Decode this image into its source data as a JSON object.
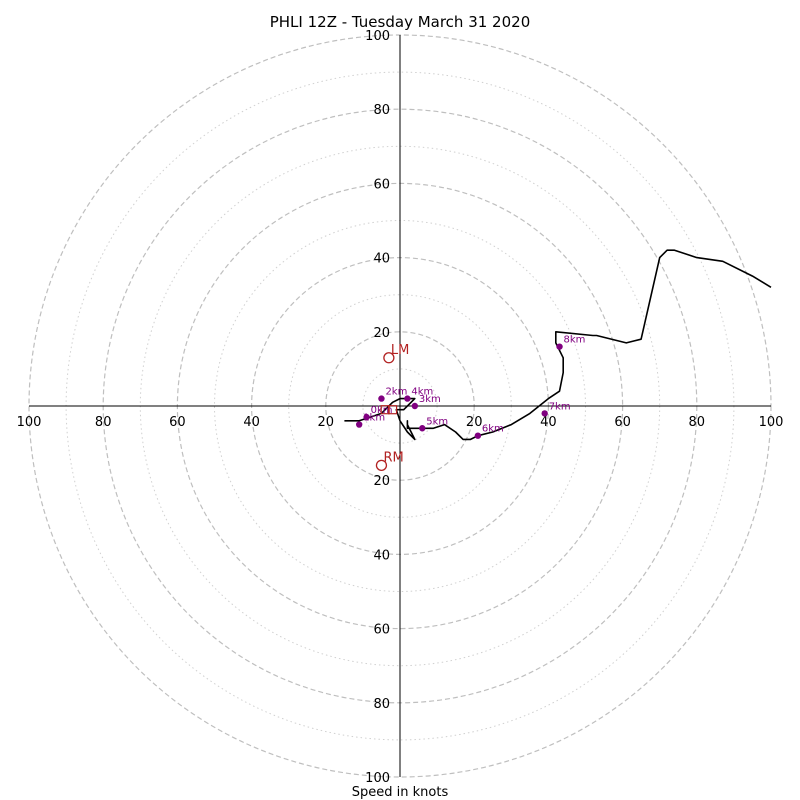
{
  "chart_data": {
    "type": "line",
    "title": "PHLI 12Z - Tuesday March 31 2020",
    "xlabel": "Speed in knots",
    "ylabel": "",
    "xlim": [
      -100,
      100
    ],
    "ylim": [
      -100,
      100
    ],
    "grid": true,
    "rings_dashed": [
      20,
      40,
      60,
      80,
      100
    ],
    "rings_dotted": [
      10,
      30,
      50,
      70,
      90
    ],
    "x_tick_labels": [
      "100",
      "80",
      "60",
      "40",
      "20",
      "20",
      "40",
      "60",
      "80",
      "100"
    ],
    "x_tick_values": [
      -100,
      -80,
      -60,
      -40,
      -20,
      20,
      40,
      60,
      80,
      100
    ],
    "y_tick_labels": [
      "100",
      "80",
      "60",
      "40",
      "20",
      "20",
      "40",
      "60",
      "80",
      "100"
    ],
    "y_tick_values": [
      100,
      80,
      60,
      40,
      20,
      -20,
      -40,
      -60,
      -80,
      -100
    ],
    "series": [
      {
        "color": "#000000",
        "u": [
          -15,
          -11,
          -8,
          -5,
          -2,
          0,
          2,
          3,
          4,
          3,
          1,
          -1,
          0,
          2,
          4,
          3,
          2,
          2,
          2,
          5,
          9,
          12,
          15,
          17,
          19,
          21,
          25,
          30,
          35,
          40,
          43,
          44,
          44,
          42,
          42,
          52,
          53,
          61,
          65,
          70,
          72,
          74,
          80,
          87,
          95,
          100
        ],
        "v": [
          -4,
          -4,
          -3,
          -2,
          1,
          2,
          2,
          2,
          2,
          1,
          -1,
          -1,
          -4,
          -7,
          -9,
          -7,
          -5,
          -4,
          -6,
          -6,
          -6,
          -5,
          -7,
          -9,
          -9,
          -8,
          -7,
          -5,
          -2,
          2,
          4,
          9,
          13,
          17,
          20,
          19,
          19,
          17,
          18,
          40,
          42,
          42,
          40,
          39,
          35,
          32
        ]
      }
    ],
    "height_markers": [
      {
        "label": "1km",
        "u": -11,
        "v": -5
      },
      {
        "label": "2km",
        "u": -5,
        "v": 2
      },
      {
        "label": "3km",
        "u": 4,
        "v": 0
      },
      {
        "label": "4km",
        "u": 2,
        "v": 2
      },
      {
        "label": "5km",
        "u": 6,
        "v": -6
      },
      {
        "label": "6km",
        "u": 21,
        "v": -8
      },
      {
        "label": "7km",
        "u": 39,
        "v": -2
      },
      {
        "label": "8km",
        "u": 43,
        "v": 16
      },
      {
        "label": "0km",
        "u": -9,
        "v": -3
      }
    ],
    "storm_motion": [
      {
        "label": "LM",
        "u": -3,
        "v": 13
      },
      {
        "label": "RM",
        "u": -5,
        "v": -16
      }
    ],
    "extra_points": [
      {
        "u": -4,
        "v": -1
      },
      {
        "u": -2,
        "v": -1
      }
    ],
    "colors": {
      "hodograph": "#000000",
      "height_marker": "#800080",
      "storm_motion": "#b22222",
      "grid": "#bfbfbf"
    }
  }
}
